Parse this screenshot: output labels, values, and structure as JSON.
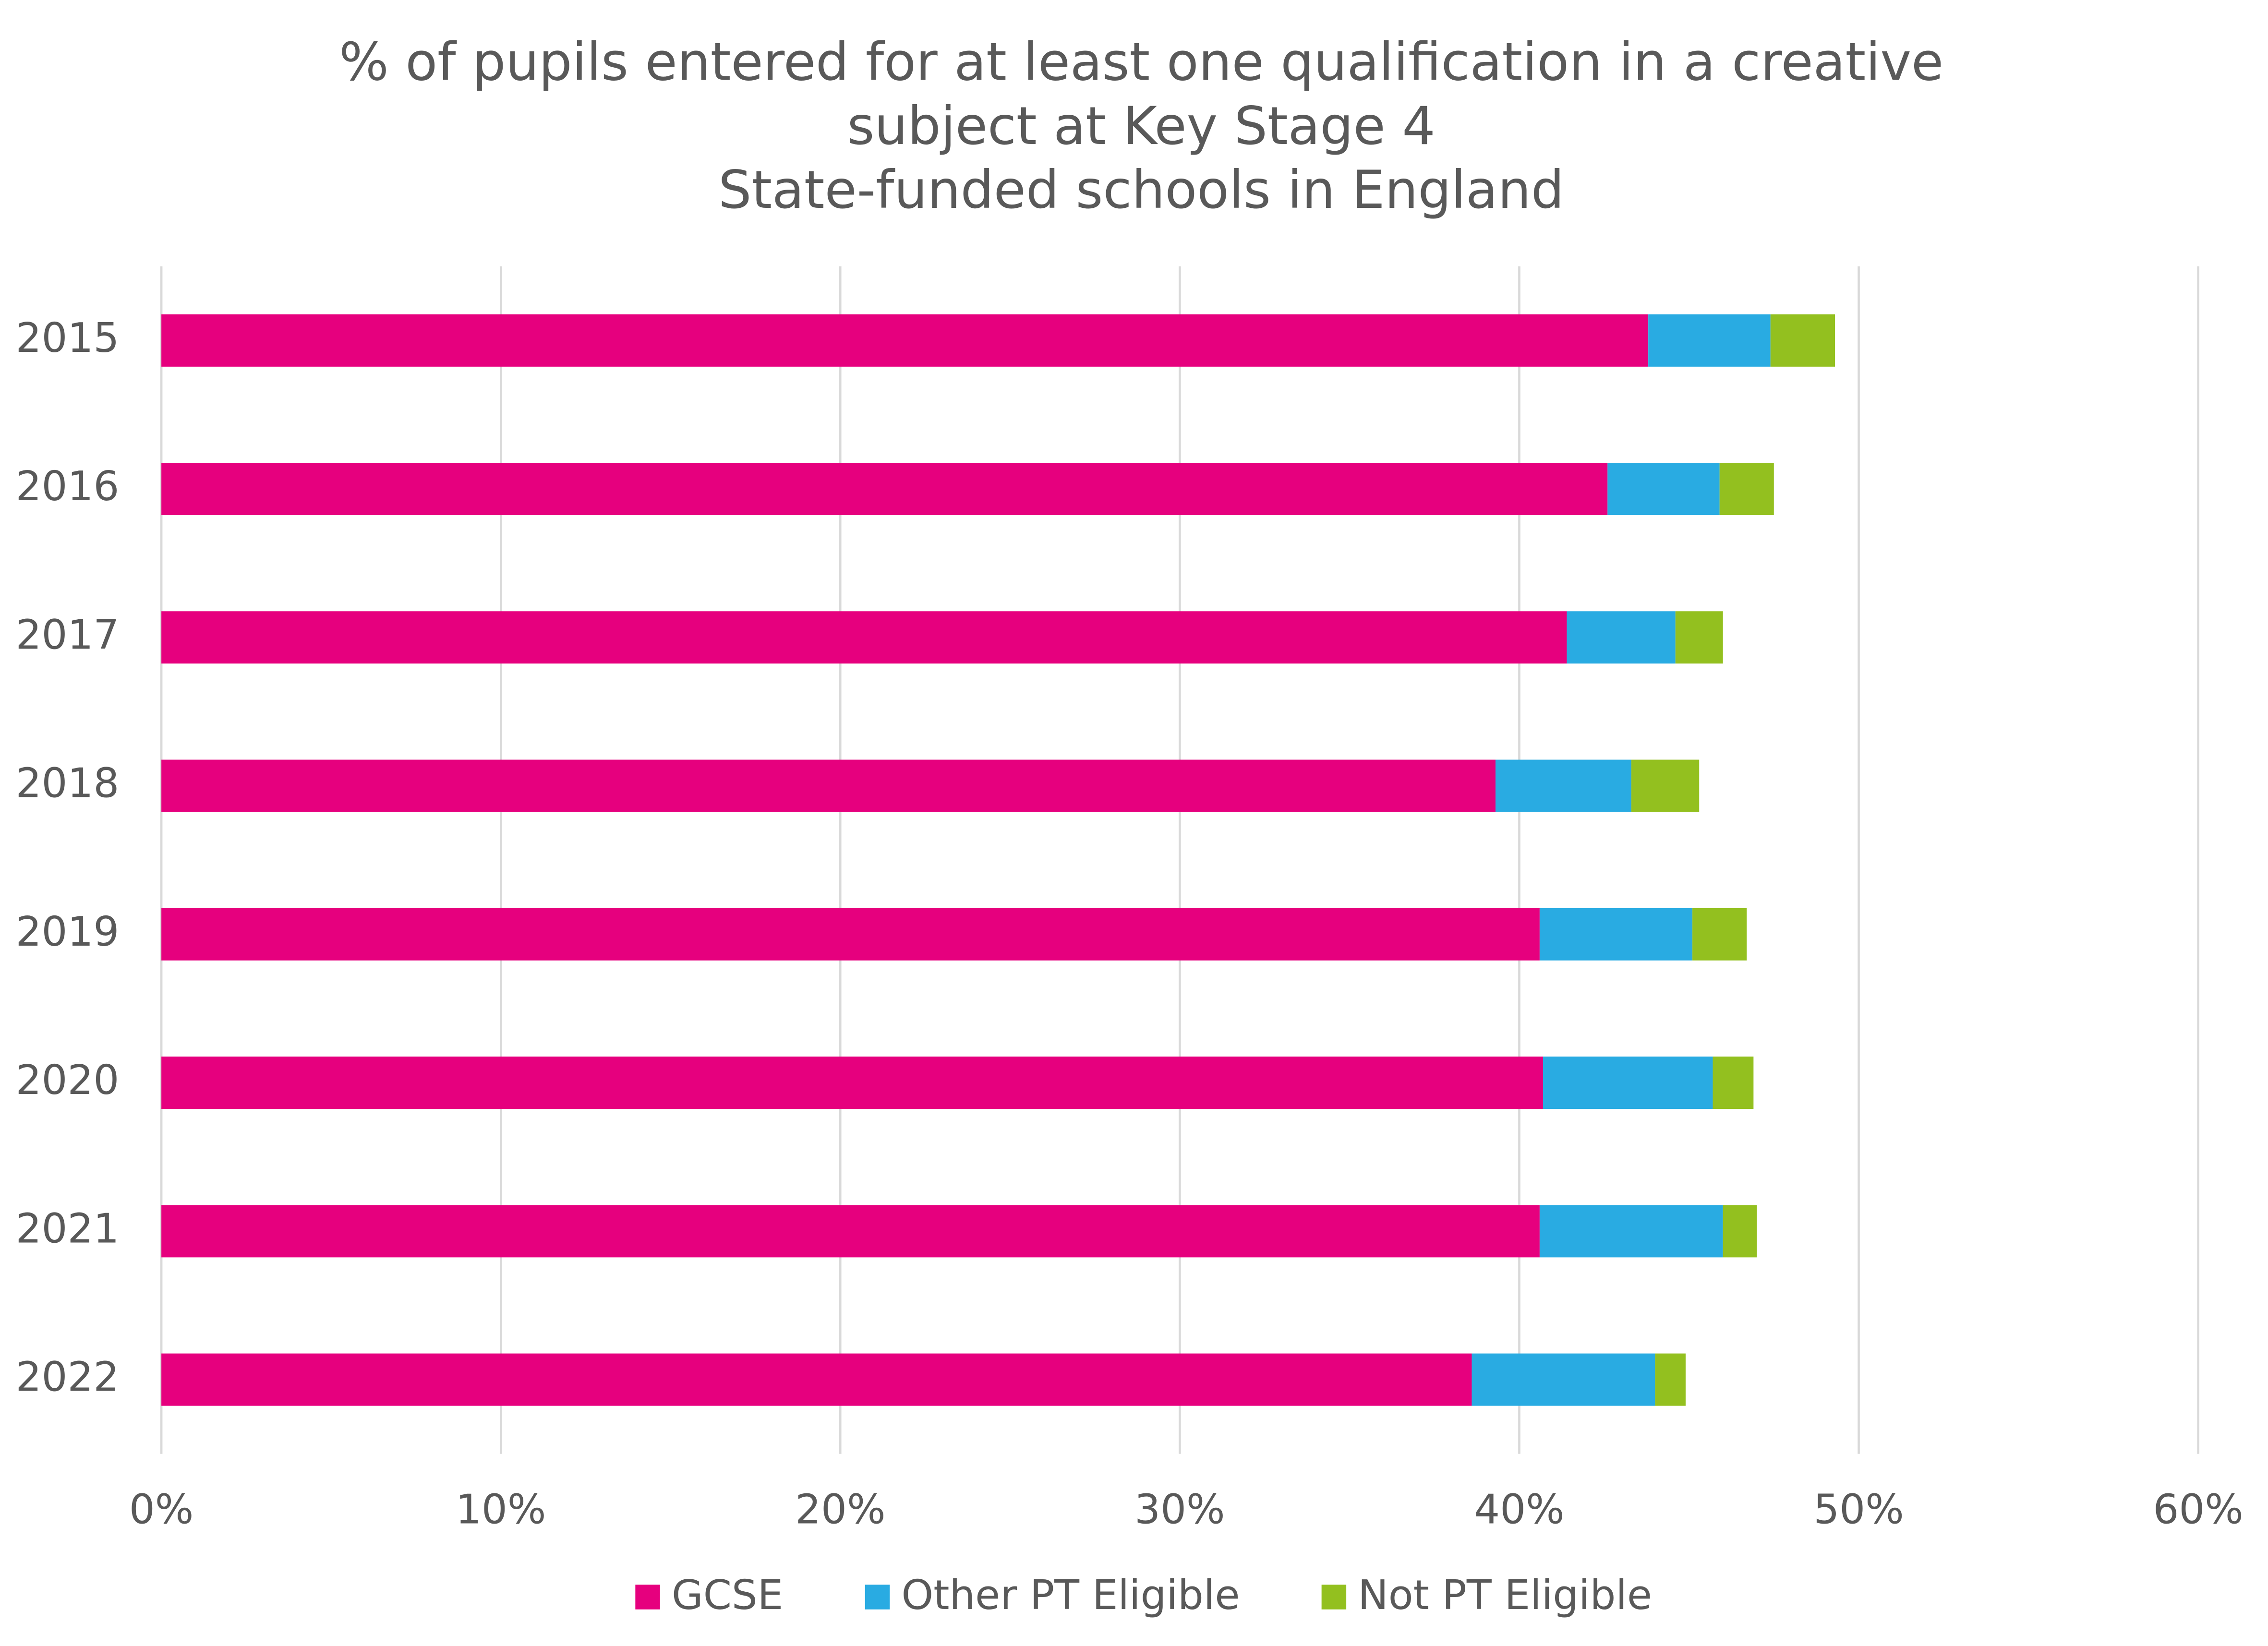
{
  "chart_data": {
    "type": "stacked-bar-horizontal",
    "title": [
      "% of pupils entered for at least one qualification in a creative",
      "subject at Key Stage 4",
      "State-funded schools in England"
    ],
    "categories": [
      "2015",
      "2016",
      "2017",
      "2018",
      "2019",
      "2020",
      "2021",
      "2022"
    ],
    "series": [
      {
        "name": "GCSE",
        "color": "#e6007e",
        "values": [
          43.8,
          42.6,
          41.4,
          39.3,
          40.6,
          40.7,
          40.6,
          38.6
        ]
      },
      {
        "name": "Other PT Eligible",
        "color": "#29abe2",
        "values": [
          3.6,
          3.3,
          3.2,
          4.0,
          4.5,
          5.0,
          5.4,
          5.4
        ]
      },
      {
        "name": "Not PT Eligible",
        "color": "#93c01f",
        "values": [
          1.9,
          1.6,
          1.4,
          2.0,
          1.6,
          1.2,
          1.0,
          0.9
        ]
      }
    ],
    "xlim": [
      0,
      60
    ],
    "xticks": [
      {
        "value": 0,
        "label": "0%"
      },
      {
        "value": 10,
        "label": "10%"
      },
      {
        "value": 20,
        "label": "20%"
      },
      {
        "value": 30,
        "label": "30%"
      },
      {
        "value": 40,
        "label": "40%"
      },
      {
        "value": 50,
        "label": "50%"
      },
      {
        "value": 60,
        "label": "60%"
      }
    ],
    "grid": true,
    "legend": "bottom"
  }
}
